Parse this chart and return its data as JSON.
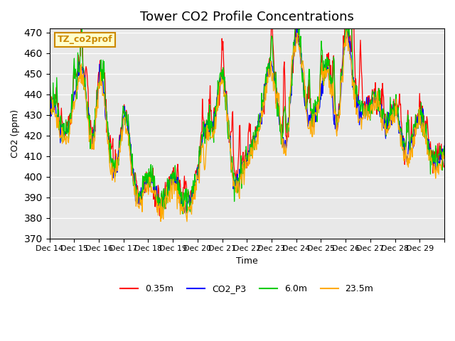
{
  "title": "Tower CO2 Profile Concentrations",
  "xlabel": "Time",
  "ylabel": "CO2 (ppm)",
  "ylim": [
    370,
    472
  ],
  "yticks": [
    370,
    380,
    390,
    400,
    410,
    420,
    430,
    440,
    450,
    460,
    470
  ],
  "annotation_text": "TZ_co2prof",
  "annotation_color": "#cc8800",
  "annotation_bg": "#ffffcc",
  "bg_color": "#e8e8e8",
  "series_colors": {
    "0.35m": "#ff0000",
    "CO2_P3": "#0000ff",
    "6.0m": "#00cc00",
    "23.5m": "#ffaa00"
  },
  "xtick_labels": [
    "Dec 14",
    "Dec 15",
    "Dec 16",
    "Dec 17",
    "Dec 18",
    "Dec 19",
    "Dec 20",
    "Dec 21",
    "Dec 22",
    "Dec 23",
    "Dec 24",
    "Dec 25",
    "Dec 26",
    "Dec 27",
    "Dec 28",
    "Dec 29",
    ""
  ],
  "n_days": 16,
  "pts_per_day": 48
}
